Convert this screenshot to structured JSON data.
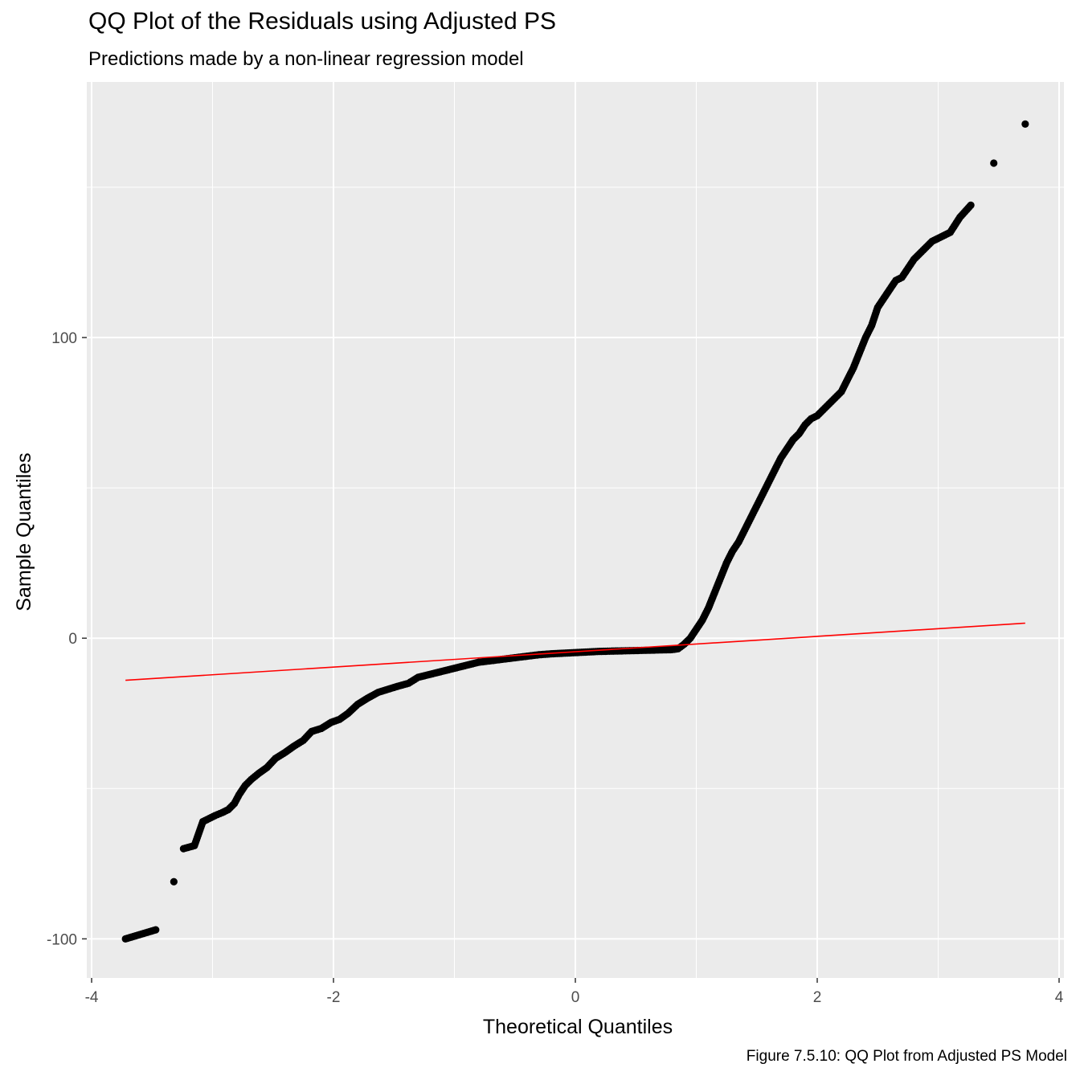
{
  "chart_data": {
    "type": "scatter",
    "title": "QQ Plot of the Residuals using Adjusted PS",
    "subtitle": "Predictions made by a non-linear regression model",
    "caption": "Figure 7.5.10: QQ Plot from Adjusted PS Model",
    "xlabel": "Theoretical Quantiles",
    "ylabel": "Sample Quantiles",
    "xlim": [
      -4.04,
      4.04
    ],
    "ylim": [
      -113,
      185
    ],
    "x_ticks": [
      -4,
      -2,
      0,
      2,
      4
    ],
    "x_tick_labels": [
      "-4",
      "-2",
      "0",
      "2",
      "4"
    ],
    "y_ticks": [
      -100,
      0,
      100
    ],
    "y_tick_labels": [
      "-100",
      "0",
      "100"
    ],
    "grid": true,
    "background": "#ebebeb",
    "point_color": "#000000",
    "line_color": "#ff0000",
    "series": [
      {
        "type": "points",
        "x": [
          -3.72,
          -3.47,
          -3.32,
          -3.24,
          -3.15,
          -3.08,
          -3.03,
          -2.98,
          -2.92,
          -2.87,
          -2.82,
          -2.78,
          -2.73,
          -2.68,
          -2.62,
          -2.55,
          -2.48,
          -2.4,
          -2.33,
          -2.25,
          -2.18,
          -2.1,
          -2.02,
          -1.95,
          -1.88,
          -1.8,
          -1.72,
          -1.63,
          -1.55,
          -1.47,
          -1.38,
          -1.3,
          -1.2,
          -1.1,
          -1.0,
          -0.9,
          -0.8,
          -0.7,
          -0.6,
          -0.5,
          -0.4,
          -0.3,
          -0.2,
          -0.1,
          0.0,
          0.1,
          0.2,
          0.3,
          0.4,
          0.5,
          0.6,
          0.7,
          0.8,
          0.85,
          0.9,
          0.95,
          1.0,
          1.05,
          1.1,
          1.15,
          1.2,
          1.25,
          1.3,
          1.35,
          1.4,
          1.45,
          1.5,
          1.55,
          1.6,
          1.65,
          1.7,
          1.75,
          1.8,
          1.85,
          1.9,
          1.95,
          2.0,
          2.05,
          2.1,
          2.15,
          2.2,
          2.25,
          2.3,
          2.35,
          2.4,
          2.45,
          2.5,
          2.55,
          2.6,
          2.65,
          2.7,
          2.75,
          2.8,
          2.85,
          2.9,
          2.95,
          3.1,
          3.18,
          3.27,
          3.46,
          3.72
        ],
        "y": [
          -100,
          -97,
          -81,
          -70,
          -69,
          -61,
          -60,
          -59,
          -58,
          -57,
          -55,
          -52,
          -49,
          -47,
          -45,
          -43,
          -40,
          -38,
          -36,
          -34,
          -31,
          -30,
          -28,
          -27,
          -25,
          -22,
          -20,
          -18,
          -17,
          -16,
          -15,
          -13,
          -12,
          -11,
          -10,
          -9,
          -8,
          -7.5,
          -7,
          -6.5,
          -6,
          -5.5,
          -5.2,
          -5,
          -4.8,
          -4.6,
          -4.4,
          -4.3,
          -4.2,
          -4.1,
          -4,
          -3.9,
          -3.8,
          -3.5,
          -2,
          0,
          3,
          6,
          10,
          15,
          20,
          25,
          29,
          32,
          36,
          40,
          44,
          48,
          52,
          56,
          60,
          63,
          66,
          68,
          71,
          73,
          74,
          76,
          78,
          80,
          82,
          86,
          90,
          95,
          100,
          104,
          110,
          113,
          116,
          119,
          120,
          123,
          126,
          128,
          130,
          132,
          135,
          140,
          144,
          158,
          171
        ]
      },
      {
        "type": "line",
        "x": [
          -3.72,
          3.72
        ],
        "y": [
          -14,
          5
        ]
      }
    ]
  }
}
